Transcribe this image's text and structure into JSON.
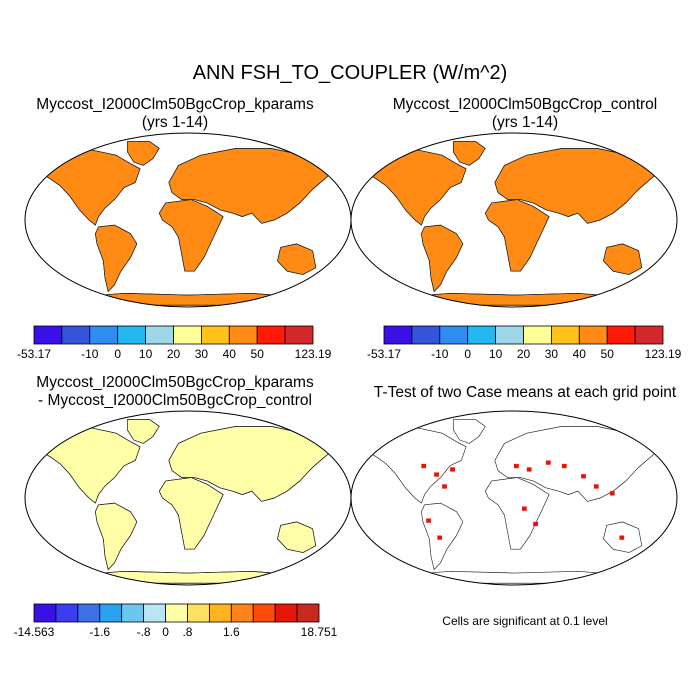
{
  "main_title": "ANN FSH_TO_COUPLER (W/m^2)",
  "panels": [
    {
      "title": "Myccost_I2000Clm50BgcCrop_kparams",
      "subtitle": "(yrs 1-14)"
    },
    {
      "title": "Myccost_I2000Clm50BgcCrop_control",
      "subtitle": "(yrs 1-14)"
    },
    {
      "title": "Myccost_I2000Clm50BgcCrop_kparams",
      "subtitle": "- Myccost_I2000Clm50BgcCrop_control"
    },
    {
      "title": "T-Test of two Case means at each grid point",
      "subtitle": ""
    }
  ],
  "colorbar_top": {
    "colors": [
      "#3a10e6",
      "#3554dc",
      "#2f8cf0",
      "#23b8f0",
      "#9ed6ea",
      "#ffff9a",
      "#ffc21a",
      "#ff8a14",
      "#ff1a0a",
      "#d4282a"
    ],
    "labels": [
      "-53.17",
      "-10",
      "0",
      "10",
      "20",
      "30",
      "40",
      "50",
      "123.19"
    ]
  },
  "colorbar_diff": {
    "colors": [
      "#3a10e6",
      "#3a3ef0",
      "#3a70e8",
      "#2aa2f0",
      "#6ac8f0",
      "#b8e6f4",
      "#ffffa8",
      "#ffe060",
      "#ffb41e",
      "#ff8418",
      "#ff4a0c",
      "#e8160a",
      "#c8281e"
    ],
    "labels": [
      "-14.563",
      "-1.6",
      "-.8",
      "0",
      ".8",
      "1.6",
      "18.751"
    ]
  },
  "significance_note": "Cells are significant at 0.1 level",
  "significance_color": "#e8140a"
}
